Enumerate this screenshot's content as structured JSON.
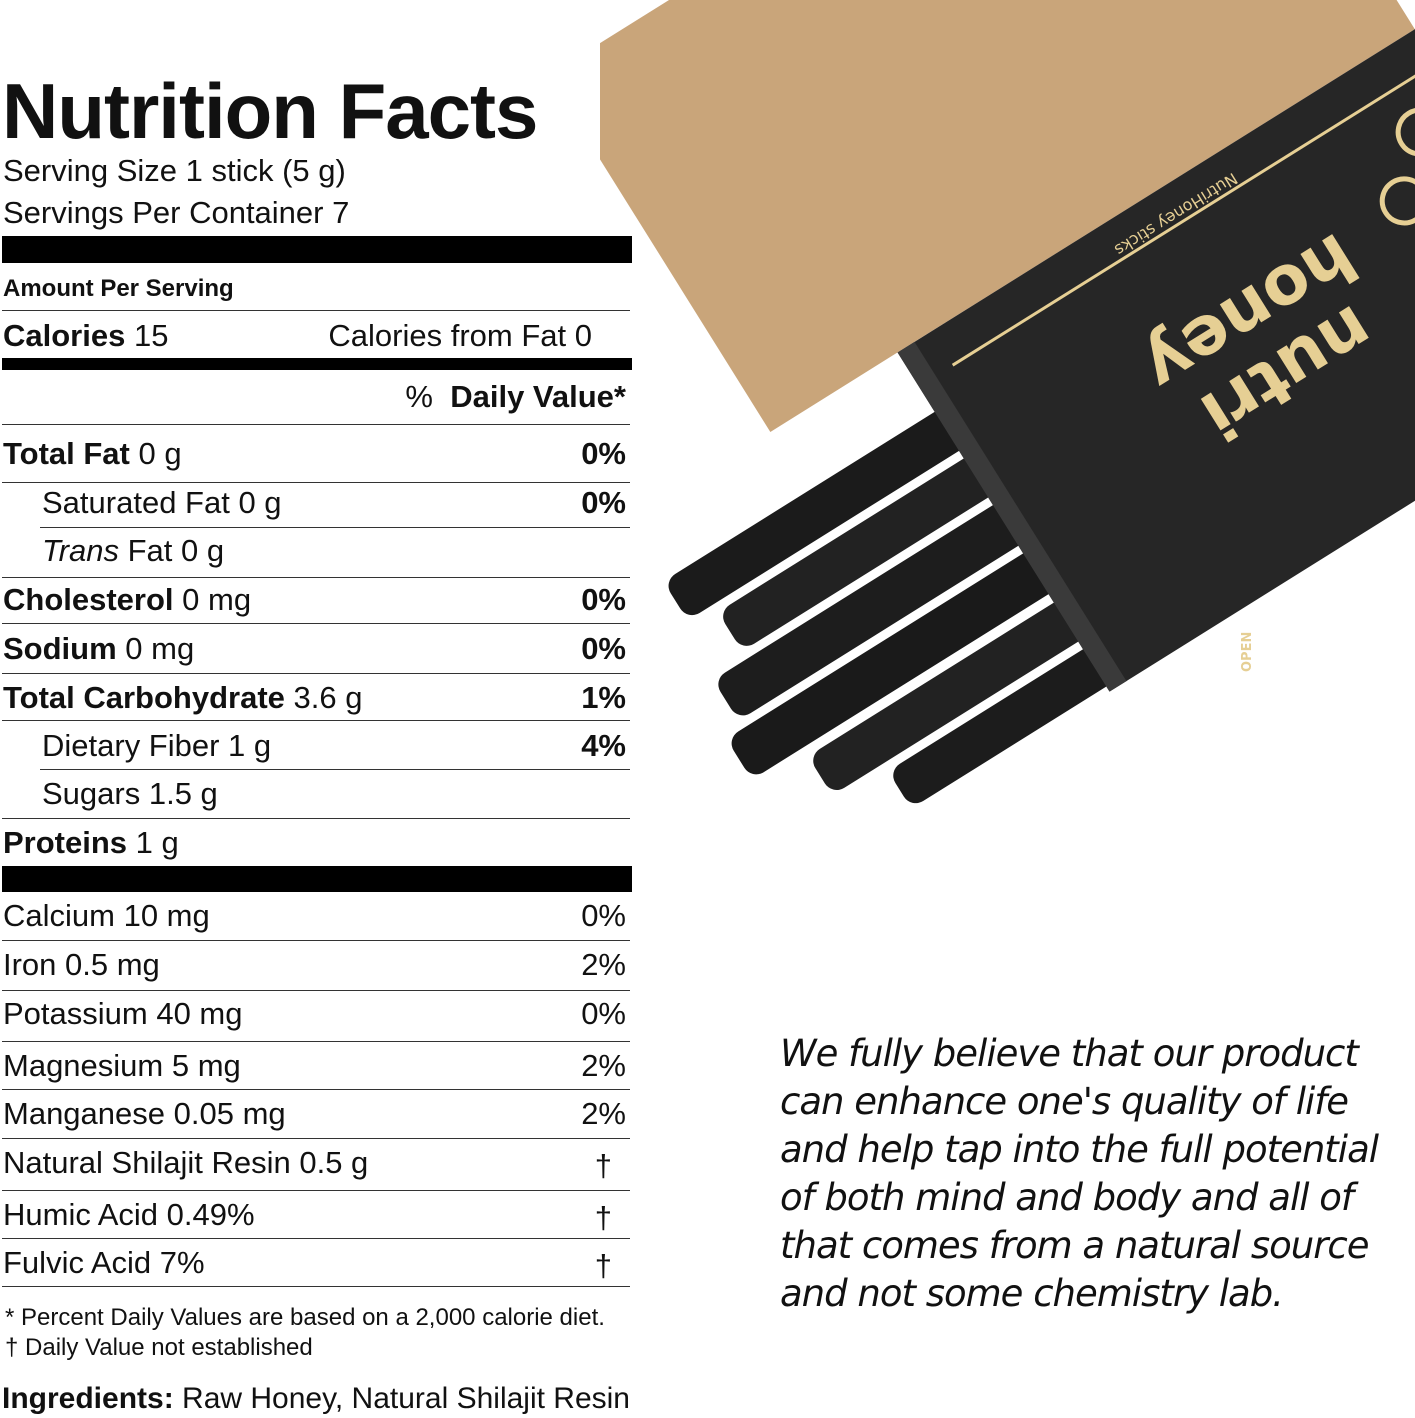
{
  "label": {
    "title": "Nutrition Facts",
    "serving_size": "Serving Size 1 stick (5 g)",
    "servings_per_container": "Servings Per Container 7",
    "amount_per_serving": "Amount Per Serving",
    "calories_label": "Calories",
    "calories_value": "15",
    "calories_from_fat": "Calories from Fat 0",
    "daily_value_header": {
      "pct": "%",
      "label": "Daily Value*"
    },
    "nutrients": [
      {
        "name": "Total Fat",
        "amount": "0 g",
        "dv": "0%"
      },
      {
        "name": "Saturated Fat 0 g",
        "dv": "0%"
      },
      {
        "name": "Trans",
        "amount": "Fat 0 g"
      },
      {
        "name": "Cholesterol",
        "amount": "0 mg",
        "dv": "0%"
      },
      {
        "name": "Sodium",
        "amount": "0 mg",
        "dv": "0%"
      },
      {
        "name": "Total Carbohydrate",
        "amount": "3.6 g",
        "dv": "1%"
      },
      {
        "name": "Dietary Fiber 1 g",
        "dv": "4%"
      },
      {
        "name": "Sugars 1.5 g"
      },
      {
        "name": "Proteins",
        "amount": "1 g"
      }
    ],
    "minerals": [
      {
        "name": "Calcium 10 mg",
        "dv": "0%"
      },
      {
        "name": "Iron 0.5 mg",
        "dv": "2%"
      },
      {
        "name": "Potassium 40 mg",
        "dv": "0%"
      },
      {
        "name": "Magnesium 5 mg",
        "dv": "2%"
      },
      {
        "name": "Manganese 0.05 mg",
        "dv": "2%"
      },
      {
        "name": "Natural Shilajit Resin 0.5 g",
        "dv": "†"
      },
      {
        "name": "Humic Acid 0.49%",
        "dv": "†"
      },
      {
        "name": "Fulvic Acid 7%",
        "dv": "†"
      }
    ],
    "footnote_1": "* Percent Daily Values are based on a 2,000 calorie diet.",
    "footnote_2": "† Daily Value not established",
    "ingredients_label": "Ingredients:",
    "ingredients": "Raw Honey, Natural Shilajit Resin"
  },
  "quote": "We fully believe that our product can enhance one's quality of life and help tap into the full potential of both mind and body and all of that comes from a natural source and not some chemistry lab.",
  "product": {
    "logo_text": "nutri honey",
    "box_text": "NutriHoney sticks",
    "open_text": "OPEN",
    "colors": {
      "kraft": "#c9a57a",
      "sleeve": "#262626",
      "gold": "#e6cf94",
      "stick": "#1b1b1b"
    }
  }
}
